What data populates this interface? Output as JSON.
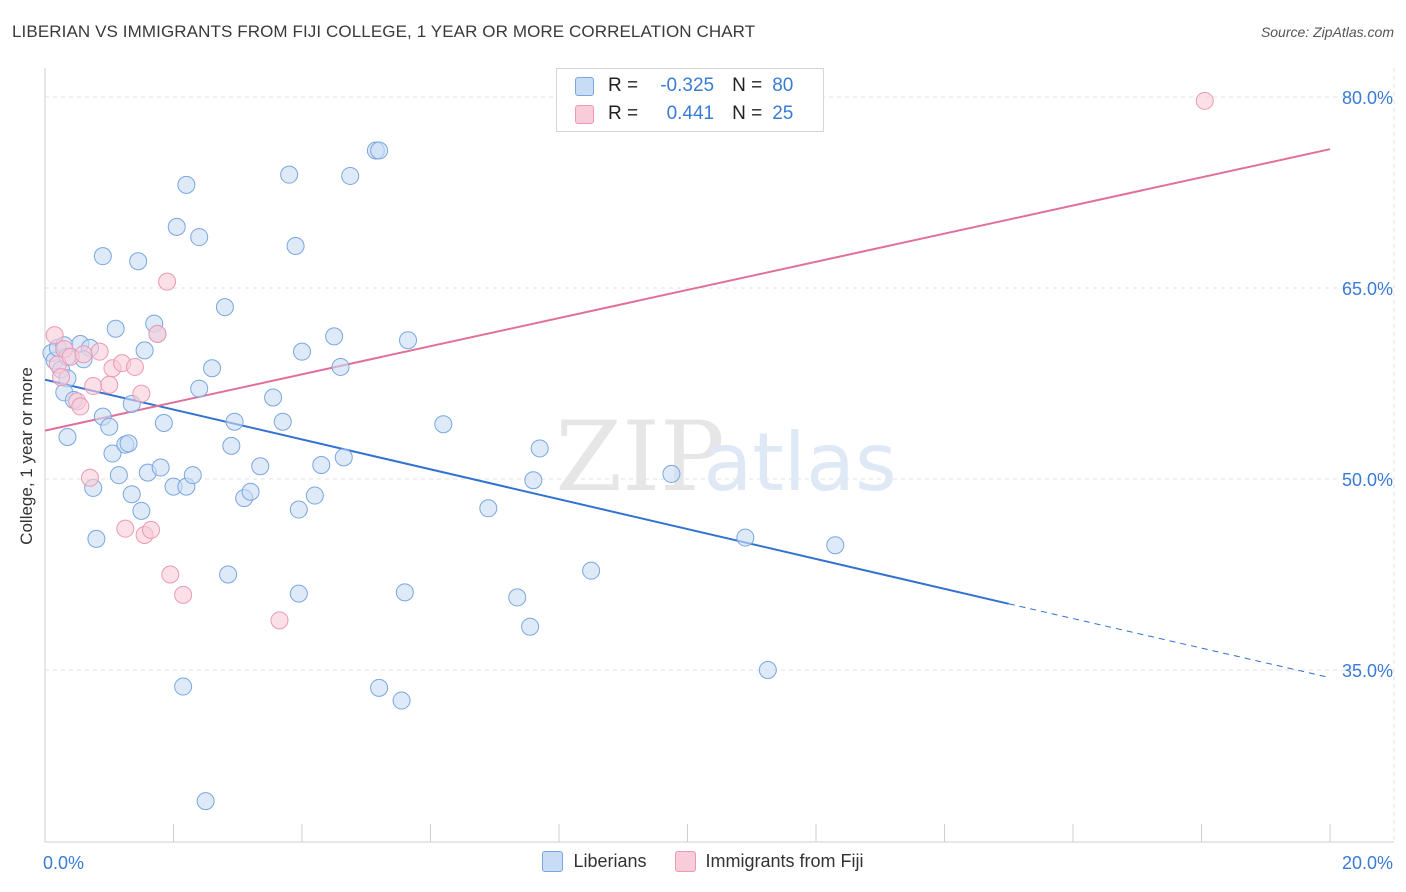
{
  "header": {
    "title": "LIBERIAN VS IMMIGRANTS FROM FIJI COLLEGE, 1 YEAR OR MORE CORRELATION CHART",
    "source": "Source: ZipAtlas.com"
  },
  "legend": {
    "rows": [
      {
        "r_label": "R =",
        "r_value": "-0.325",
        "n_label": "N =",
        "n_value": "80"
      },
      {
        "r_label": "R =",
        "r_value": "0.441",
        "n_label": "N =",
        "n_value": "25"
      }
    ]
  },
  "colors": {
    "liberians_fill": "#c9dcf5",
    "liberians_stroke": "#7aa6e0",
    "liberians_line": "#3272d0",
    "fiji_fill": "#f8ccd9",
    "fiji_stroke": "#ec99b4",
    "fiji_line": "#e0709a",
    "grid": "#e2e2e2",
    "tick_label": "#3a7bd5"
  },
  "watermark": {
    "zip": "ZIP",
    "atlas": "atlas"
  },
  "chart_data": {
    "type": "scatter",
    "title": "LIBERIAN VS IMMIGRANTS FROM FIJI COLLEGE, 1 YEAR OR MORE CORRELATION CHART",
    "xlabel": "",
    "ylabel": "College, 1 year or more",
    "xlim": [
      0,
      20
    ],
    "ylim": [
      21,
      82
    ],
    "x_tick_labels": [
      "0.0%",
      "20.0%"
    ],
    "y_ticks": [
      35,
      50,
      65,
      80
    ],
    "y_tick_labels": [
      "35.0%",
      "50.0%",
      "65.0%",
      "80.0%"
    ],
    "grid": true,
    "legend_position": "top-center",
    "series": [
      {
        "name": "Liberians",
        "r": -0.325,
        "n": 80,
        "trend": {
          "x0": 0.0,
          "y0": 57.8,
          "x1": 15.0,
          "y1": 40.2,
          "dashed_to_x": 20.0,
          "dashed_to_y": 34.4
        },
        "points": [
          [
            0.1,
            59.9
          ],
          [
            0.15,
            59.3
          ],
          [
            0.2,
            60.3
          ],
          [
            0.25,
            58.6
          ],
          [
            0.3,
            60.5
          ],
          [
            0.35,
            57.9
          ],
          [
            0.3,
            56.8
          ],
          [
            0.45,
            56.2
          ],
          [
            0.55,
            60.6
          ],
          [
            0.7,
            60.3
          ],
          [
            0.6,
            59.4
          ],
          [
            0.9,
            67.5
          ],
          [
            1.1,
            61.8
          ],
          [
            1.45,
            67.1
          ],
          [
            1.7,
            62.2
          ],
          [
            1.75,
            61.4
          ],
          [
            1.55,
            60.1
          ],
          [
            2.05,
            69.8
          ],
          [
            2.2,
            73.1
          ],
          [
            2.4,
            69.0
          ],
          [
            2.8,
            63.5
          ],
          [
            2.6,
            58.7
          ],
          [
            2.4,
            57.1
          ],
          [
            3.8,
            73.9
          ],
          [
            3.9,
            68.3
          ],
          [
            4.75,
            73.8
          ],
          [
            5.15,
            75.8
          ],
          [
            5.2,
            75.8
          ],
          [
            4.5,
            61.2
          ],
          [
            4.0,
            60.0
          ],
          [
            4.6,
            58.8
          ],
          [
            5.65,
            60.9
          ],
          [
            0.35,
            53.3
          ],
          [
            0.75,
            49.3
          ],
          [
            0.8,
            45.3
          ],
          [
            0.9,
            54.9
          ],
          [
            1.0,
            54.1
          ],
          [
            1.05,
            52.0
          ],
          [
            1.15,
            50.3
          ],
          [
            1.25,
            52.7
          ],
          [
            1.3,
            52.8
          ],
          [
            1.35,
            48.8
          ],
          [
            1.35,
            55.9
          ],
          [
            1.5,
            47.5
          ],
          [
            1.6,
            50.5
          ],
          [
            1.8,
            50.9
          ],
          [
            1.85,
            54.4
          ],
          [
            2.0,
            49.4
          ],
          [
            2.2,
            49.4
          ],
          [
            2.3,
            50.3
          ],
          [
            2.9,
            52.6
          ],
          [
            2.95,
            54.5
          ],
          [
            3.1,
            48.5
          ],
          [
            3.2,
            49.0
          ],
          [
            3.35,
            51.0
          ],
          [
            3.55,
            56.4
          ],
          [
            3.7,
            54.5
          ],
          [
            3.95,
            47.6
          ],
          [
            4.2,
            48.7
          ],
          [
            4.3,
            51.1
          ],
          [
            4.65,
            51.7
          ],
          [
            2.85,
            42.5
          ],
          [
            3.95,
            41.0
          ],
          [
            5.6,
            41.1
          ],
          [
            6.2,
            54.3
          ],
          [
            6.9,
            47.7
          ],
          [
            7.7,
            52.4
          ],
          [
            7.6,
            49.9
          ],
          [
            7.35,
            40.7
          ],
          [
            7.55,
            38.4
          ],
          [
            8.5,
            42.8
          ],
          [
            9.75,
            50.4
          ],
          [
            10.9,
            45.4
          ],
          [
            12.3,
            44.8
          ],
          [
            11.25,
            35.0
          ],
          [
            2.15,
            33.7
          ],
          [
            5.2,
            33.6
          ],
          [
            5.55,
            32.6
          ],
          [
            2.5,
            24.7
          ],
          [
            0.35,
            59.6
          ]
        ]
      },
      {
        "name": "Immigrants from Fiji",
        "r": 0.441,
        "n": 25,
        "trend": {
          "x0": 0.0,
          "y0": 53.8,
          "x1": 20.0,
          "y1": 75.9
        },
        "points": [
          [
            0.15,
            61.3
          ],
          [
            0.2,
            59.0
          ],
          [
            0.3,
            60.2
          ],
          [
            0.25,
            58.0
          ],
          [
            0.4,
            59.6
          ],
          [
            0.5,
            56.1
          ],
          [
            0.55,
            55.7
          ],
          [
            0.6,
            59.8
          ],
          [
            0.75,
            57.3
          ],
          [
            0.85,
            60.0
          ],
          [
            1.0,
            57.4
          ],
          [
            1.05,
            58.7
          ],
          [
            1.2,
            59.1
          ],
          [
            1.4,
            58.8
          ],
          [
            1.5,
            56.7
          ],
          [
            1.75,
            61.4
          ],
          [
            1.9,
            65.5
          ],
          [
            0.7,
            50.1
          ],
          [
            1.25,
            46.1
          ],
          [
            1.55,
            45.6
          ],
          [
            1.65,
            46.0
          ],
          [
            1.95,
            42.5
          ],
          [
            2.15,
            40.9
          ],
          [
            3.65,
            38.9
          ],
          [
            18.05,
            79.7
          ]
        ]
      }
    ]
  },
  "bottom_legend": {
    "items": [
      "Liberians",
      "Immigrants from Fiji"
    ]
  }
}
